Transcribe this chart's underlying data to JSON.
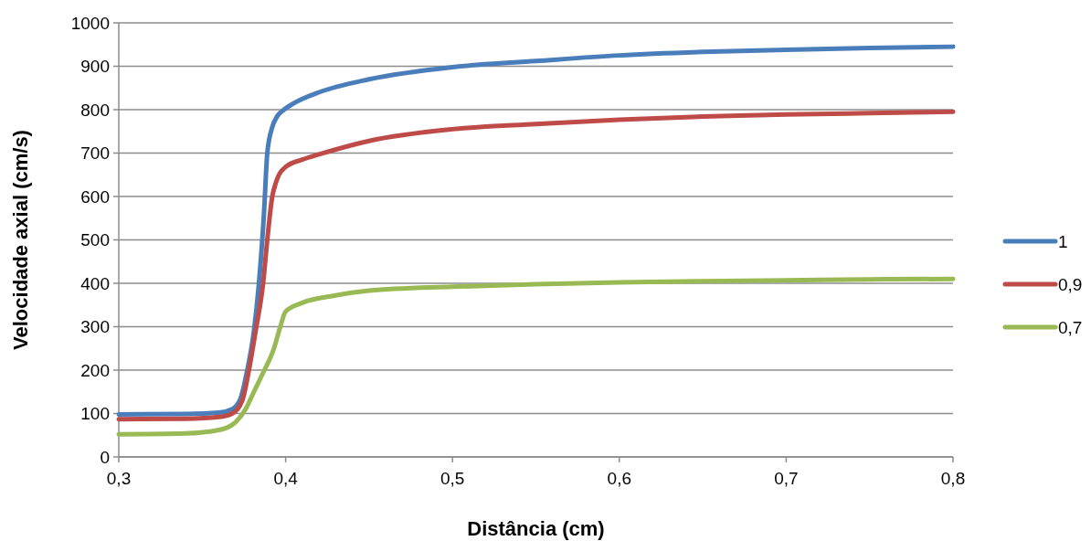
{
  "chart_data": {
    "type": "line",
    "xlabel": "Distância (cm)",
    "ylabel": "Velocidade axial (cm/s)",
    "xlim": [
      0.3,
      0.8
    ],
    "ylim": [
      0,
      1000
    ],
    "xticks": [
      {
        "value": 0.3,
        "label": "0,3"
      },
      {
        "value": 0.4,
        "label": "0,4"
      },
      {
        "value": 0.5,
        "label": "0,5"
      },
      {
        "value": 0.6,
        "label": "0,6"
      },
      {
        "value": 0.7,
        "label": "0,7"
      },
      {
        "value": 0.8,
        "label": "0,8"
      }
    ],
    "yticks": [
      0,
      100,
      200,
      300,
      400,
      500,
      600,
      700,
      800,
      900,
      1000
    ],
    "grid": "y",
    "legend": "right",
    "line_style": "solid",
    "series": [
      {
        "name": "1",
        "color": "#4a7ebb",
        "x": [
          0.3,
          0.34,
          0.36,
          0.368,
          0.373,
          0.377,
          0.381,
          0.384,
          0.387,
          0.389,
          0.392,
          0.395,
          0.399,
          0.405,
          0.42,
          0.45,
          0.5,
          0.55,
          0.6,
          0.65,
          0.7,
          0.75,
          0.8
        ],
        "values": [
          98,
          99,
          102,
          110,
          135,
          200,
          290,
          400,
          560,
          700,
          760,
          785,
          800,
          815,
          840,
          870,
          898,
          912,
          925,
          933,
          938,
          942,
          945
        ]
      },
      {
        "name": "0,9",
        "color": "#be4b48",
        "x": [
          0.3,
          0.34,
          0.36,
          0.368,
          0.374,
          0.378,
          0.382,
          0.3865,
          0.389,
          0.392,
          0.394,
          0.396,
          0.4,
          0.41,
          0.42,
          0.45,
          0.5,
          0.55,
          0.6,
          0.65,
          0.7,
          0.75,
          0.8
        ],
        "values": [
          87,
          88,
          92,
          100,
          130,
          200,
          290,
          400,
          500,
          600,
          630,
          650,
          668,
          685,
          697,
          728,
          755,
          767,
          777,
          784,
          789,
          792,
          795
        ]
      },
      {
        "name": "0,7",
        "color": "#98b954",
        "x": [
          0.3,
          0.34,
          0.36,
          0.37,
          0.376,
          0.381,
          0.386,
          0.393,
          0.3968,
          0.4,
          0.41,
          0.43,
          0.45,
          0.5,
          0.55,
          0.6,
          0.65,
          0.7,
          0.75,
          0.8
        ],
        "values": [
          52,
          54,
          62,
          80,
          110,
          150,
          190,
          250,
          300,
          335,
          355,
          372,
          383,
          392,
          398,
          402,
          405,
          407,
          409,
          410
        ]
      }
    ]
  }
}
